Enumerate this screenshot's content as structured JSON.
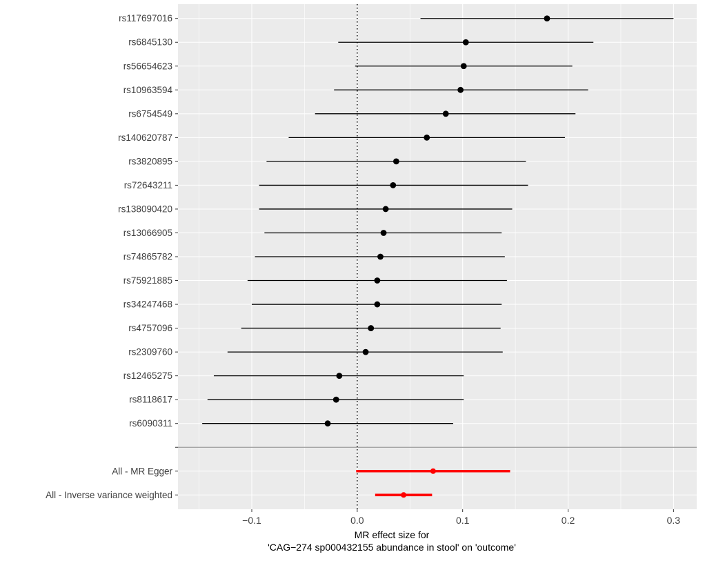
{
  "figure": {
    "background": "#FFFFFF",
    "panel_background": "#EBEBEB",
    "grid_color": "#FFFFFF",
    "axis_text_color": "#404040",
    "tick_mark_color": "#333333",
    "snp_color": "#000000",
    "summary_color": "#FF0000",
    "separator_color": "#9B9B9B",
    "zero_line_color": "#000000"
  },
  "chart_data": {
    "type": "forest",
    "title": "",
    "xlabel_lines": [
      "MR effect size for",
      "'CAG−274 sp000432155 abundance in stool' on 'outcome'"
    ],
    "ylabel": "",
    "xlim": [
      -0.17,
      0.322
    ],
    "x_ticks": [
      -0.1,
      0.0,
      0.1,
      0.2,
      0.3
    ],
    "x_tick_labels": [
      "−0.1",
      "0.0",
      "0.1",
      "0.2",
      "0.3"
    ],
    "reference_line_x": 0,
    "grid": true,
    "legend": "none",
    "snps": [
      {
        "label": "rs117697016",
        "estimate": 0.18,
        "lo": 0.06,
        "hi": 0.3
      },
      {
        "label": "rs6845130",
        "estimate": 0.103,
        "lo": -0.018,
        "hi": 0.224
      },
      {
        "label": "rs56654623",
        "estimate": 0.101,
        "lo": -0.002,
        "hi": 0.204
      },
      {
        "label": "rs10963594",
        "estimate": 0.098,
        "lo": -0.022,
        "hi": 0.219
      },
      {
        "label": "rs6754549",
        "estimate": 0.084,
        "lo": -0.04,
        "hi": 0.207
      },
      {
        "label": "rs140620787",
        "estimate": 0.066,
        "lo": -0.065,
        "hi": 0.197
      },
      {
        "label": "rs3820895",
        "estimate": 0.037,
        "lo": -0.086,
        "hi": 0.16
      },
      {
        "label": "rs72643211",
        "estimate": 0.034,
        "lo": -0.093,
        "hi": 0.162
      },
      {
        "label": "rs138090420",
        "estimate": 0.027,
        "lo": -0.093,
        "hi": 0.147
      },
      {
        "label": "rs13066905",
        "estimate": 0.025,
        "lo": -0.088,
        "hi": 0.137
      },
      {
        "label": "rs74865782",
        "estimate": 0.022,
        "lo": -0.097,
        "hi": 0.14
      },
      {
        "label": "rs75921885",
        "estimate": 0.019,
        "lo": -0.104,
        "hi": 0.142
      },
      {
        "label": "rs34247468",
        "estimate": 0.019,
        "lo": -0.1,
        "hi": 0.137
      },
      {
        "label": "rs4757096",
        "estimate": 0.013,
        "lo": -0.11,
        "hi": 0.136
      },
      {
        "label": "rs2309760",
        "estimate": 0.008,
        "lo": -0.123,
        "hi": 0.138
      },
      {
        "label": "rs12465275",
        "estimate": -0.017,
        "lo": -0.136,
        "hi": 0.101
      },
      {
        "label": "rs8118617",
        "estimate": -0.02,
        "lo": -0.142,
        "hi": 0.101
      },
      {
        "label": "rs6090311",
        "estimate": -0.028,
        "lo": -0.147,
        "hi": 0.091
      }
    ],
    "summary": [
      {
        "label": "All - MR Egger",
        "estimate": 0.072,
        "lo": -0.001,
        "hi": 0.145
      },
      {
        "label": "All - Inverse variance weighted",
        "estimate": 0.044,
        "lo": 0.017,
        "hi": 0.071
      }
    ]
  }
}
